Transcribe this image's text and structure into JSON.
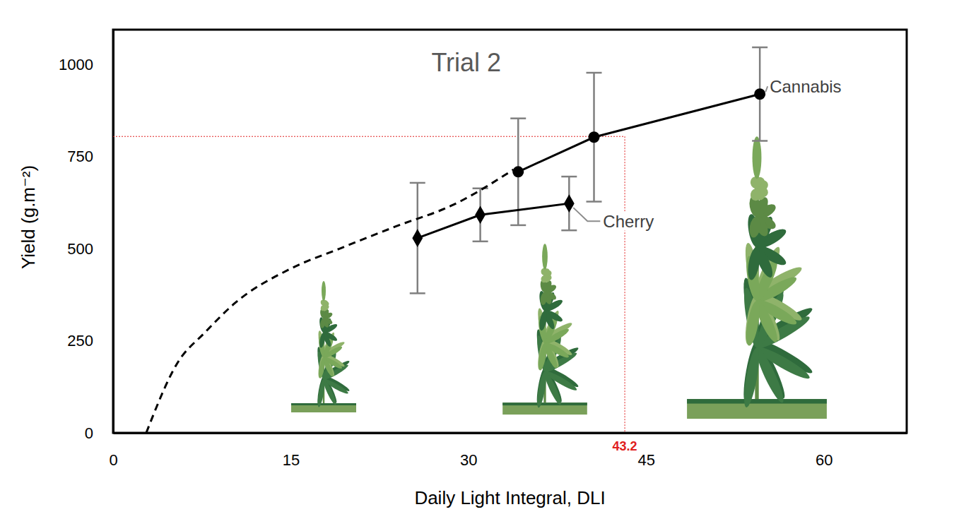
{
  "chart_data": {
    "type": "line",
    "title": "Trial 2",
    "x_label": "Daily Light Integral, DLI",
    "y_label": "Yield (g.m⁻²)",
    "xlim": [
      0,
      67
    ],
    "ylim": [
      0,
      1095
    ],
    "xticks": [
      0,
      15,
      30,
      45,
      60
    ],
    "yticks": [
      0,
      250,
      500,
      750,
      1000
    ],
    "grid": false,
    "series": [
      {
        "name": "Cannabis",
        "color": "#000000",
        "marker": "circle",
        "line_style": "solid",
        "x": [
          34.2,
          40.6,
          54.6
        ],
        "values": [
          709,
          803,
          920
        ],
        "error": [
          145,
          175,
          127
        ]
      },
      {
        "name": "Cherry",
        "color": "#000000",
        "marker": "diamond",
        "line_style": "solid",
        "x": [
          25.7,
          31.0,
          38.5
        ],
        "values": [
          529,
          592,
          623
        ],
        "error": [
          150,
          72,
          73
        ]
      },
      {
        "color": "#000000",
        "marker": "none",
        "line_style": "dashed",
        "x": [
          2.8,
          5.4,
          7.8,
          10.2,
          15,
          19.1,
          23.9,
          28.7,
          33.8
        ],
        "values": [
          0,
          188,
          274,
          350,
          446,
          500,
          561,
          619,
          715
        ]
      }
    ],
    "reference": {
      "x": 43.2,
      "y": 805,
      "label": "43.2",
      "color": "#e02020"
    }
  }
}
